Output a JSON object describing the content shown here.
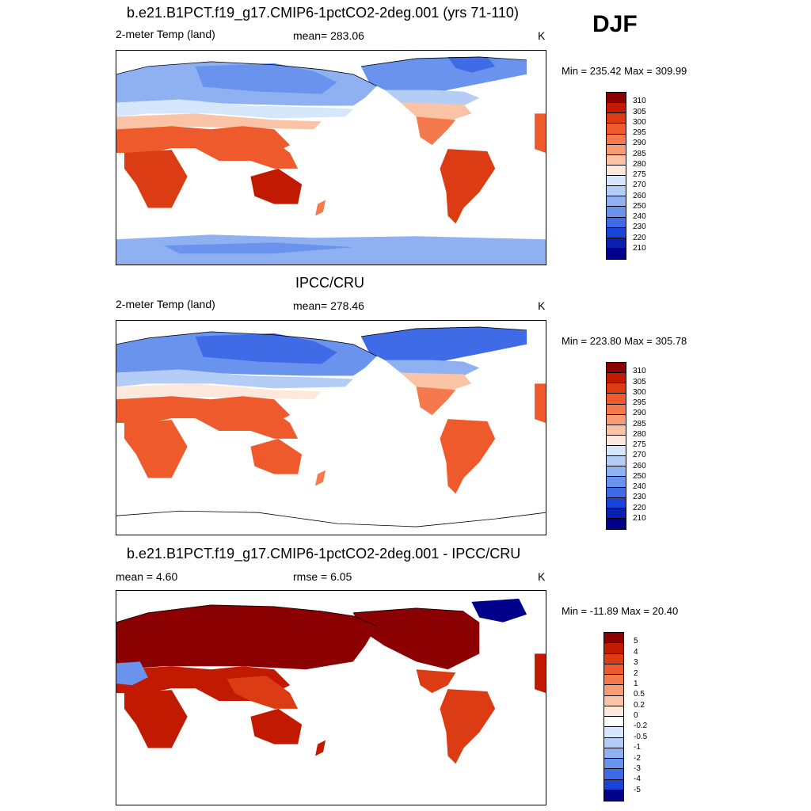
{
  "season": "DJF",
  "panels": [
    {
      "title": "b.e21.B1PCT.f19_g17.CMIP6-1pctCO2-2deg.001 (yrs 71-110)",
      "left_label": "2-meter Temp (land)",
      "center_label": "mean= 283.06",
      "right_label": "K",
      "minmax": "Min = 235.42 Max = 309.99",
      "scale": "abs",
      "tick_labels": [
        "310",
        "305",
        "300",
        "295",
        "290",
        "285",
        "280",
        "275",
        "270",
        "260",
        "250",
        "240",
        "230",
        "220",
        "210"
      ]
    },
    {
      "title": "IPCC/CRU",
      "left_label": "2-meter Temp (land)",
      "center_label": "mean= 278.46",
      "right_label": "K",
      "minmax": "Min = 223.80 Max = 305.78",
      "scale": "abs",
      "tick_labels": [
        "310",
        "305",
        "300",
        "295",
        "290",
        "285",
        "280",
        "275",
        "270",
        "260",
        "250",
        "240",
        "230",
        "220",
        "210"
      ]
    },
    {
      "title": "b.e21.B1PCT.f19_g17.CMIP6-1pctCO2-2deg.001 - IPCC/CRU",
      "left_label": "mean =   4.60",
      "center_label": "rmse =   6.05",
      "right_label": "K",
      "minmax": "Min = -11.89 Max =  20.40",
      "scale": "diff",
      "tick_labels": [
        "5",
        "4",
        "3",
        "2",
        "1",
        "0.5",
        "0.2",
        "0",
        "-0.2",
        "-0.5",
        "-1",
        "-2",
        "-3",
        "-4",
        "-5"
      ]
    }
  ],
  "colors": {
    "abs": [
      "#8b0000",
      "#c21a00",
      "#dc3c14",
      "#ef5a2d",
      "#f47a4e",
      "#f89c76",
      "#fbc3a6",
      "#fde8dc",
      "#d6e6fb",
      "#b3cdf6",
      "#8fb1f2",
      "#6a93ee",
      "#3f6be6",
      "#1a44d8",
      "#0a1fb0",
      "#00008b"
    ],
    "diff": [
      "#8b0000",
      "#c21a00",
      "#dc3c14",
      "#ef5a2d",
      "#f47a4e",
      "#f89c76",
      "#fbc3a6",
      "#fde8dc",
      "#ffffff",
      "#d6e6fb",
      "#b3cdf6",
      "#8fb1f2",
      "#6a93ee",
      "#3f6be6",
      "#1a44d8",
      "#00008b"
    ]
  }
}
